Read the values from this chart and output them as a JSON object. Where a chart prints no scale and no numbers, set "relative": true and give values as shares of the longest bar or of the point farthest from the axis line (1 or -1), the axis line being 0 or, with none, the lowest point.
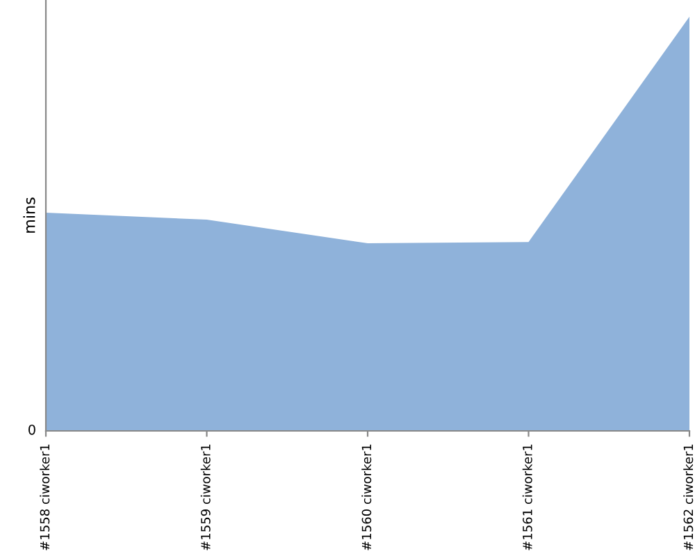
{
  "chart_data": {
    "type": "area",
    "ylabel": "mins",
    "relative": true,
    "annotations": [
      "0"
    ],
    "categories": [
      "#1558 ciworker1",
      "#1559 ciworker1",
      "#1560 ciworker1",
      "#1561 ciworker1",
      "#1562 ciworker1"
    ],
    "series": [
      {
        "color": "#8fb2da",
        "values": [
          0.527,
          0.51,
          0.453,
          0.456,
          1
        ]
      }
    ],
    "grid": false,
    "legend": false
  }
}
